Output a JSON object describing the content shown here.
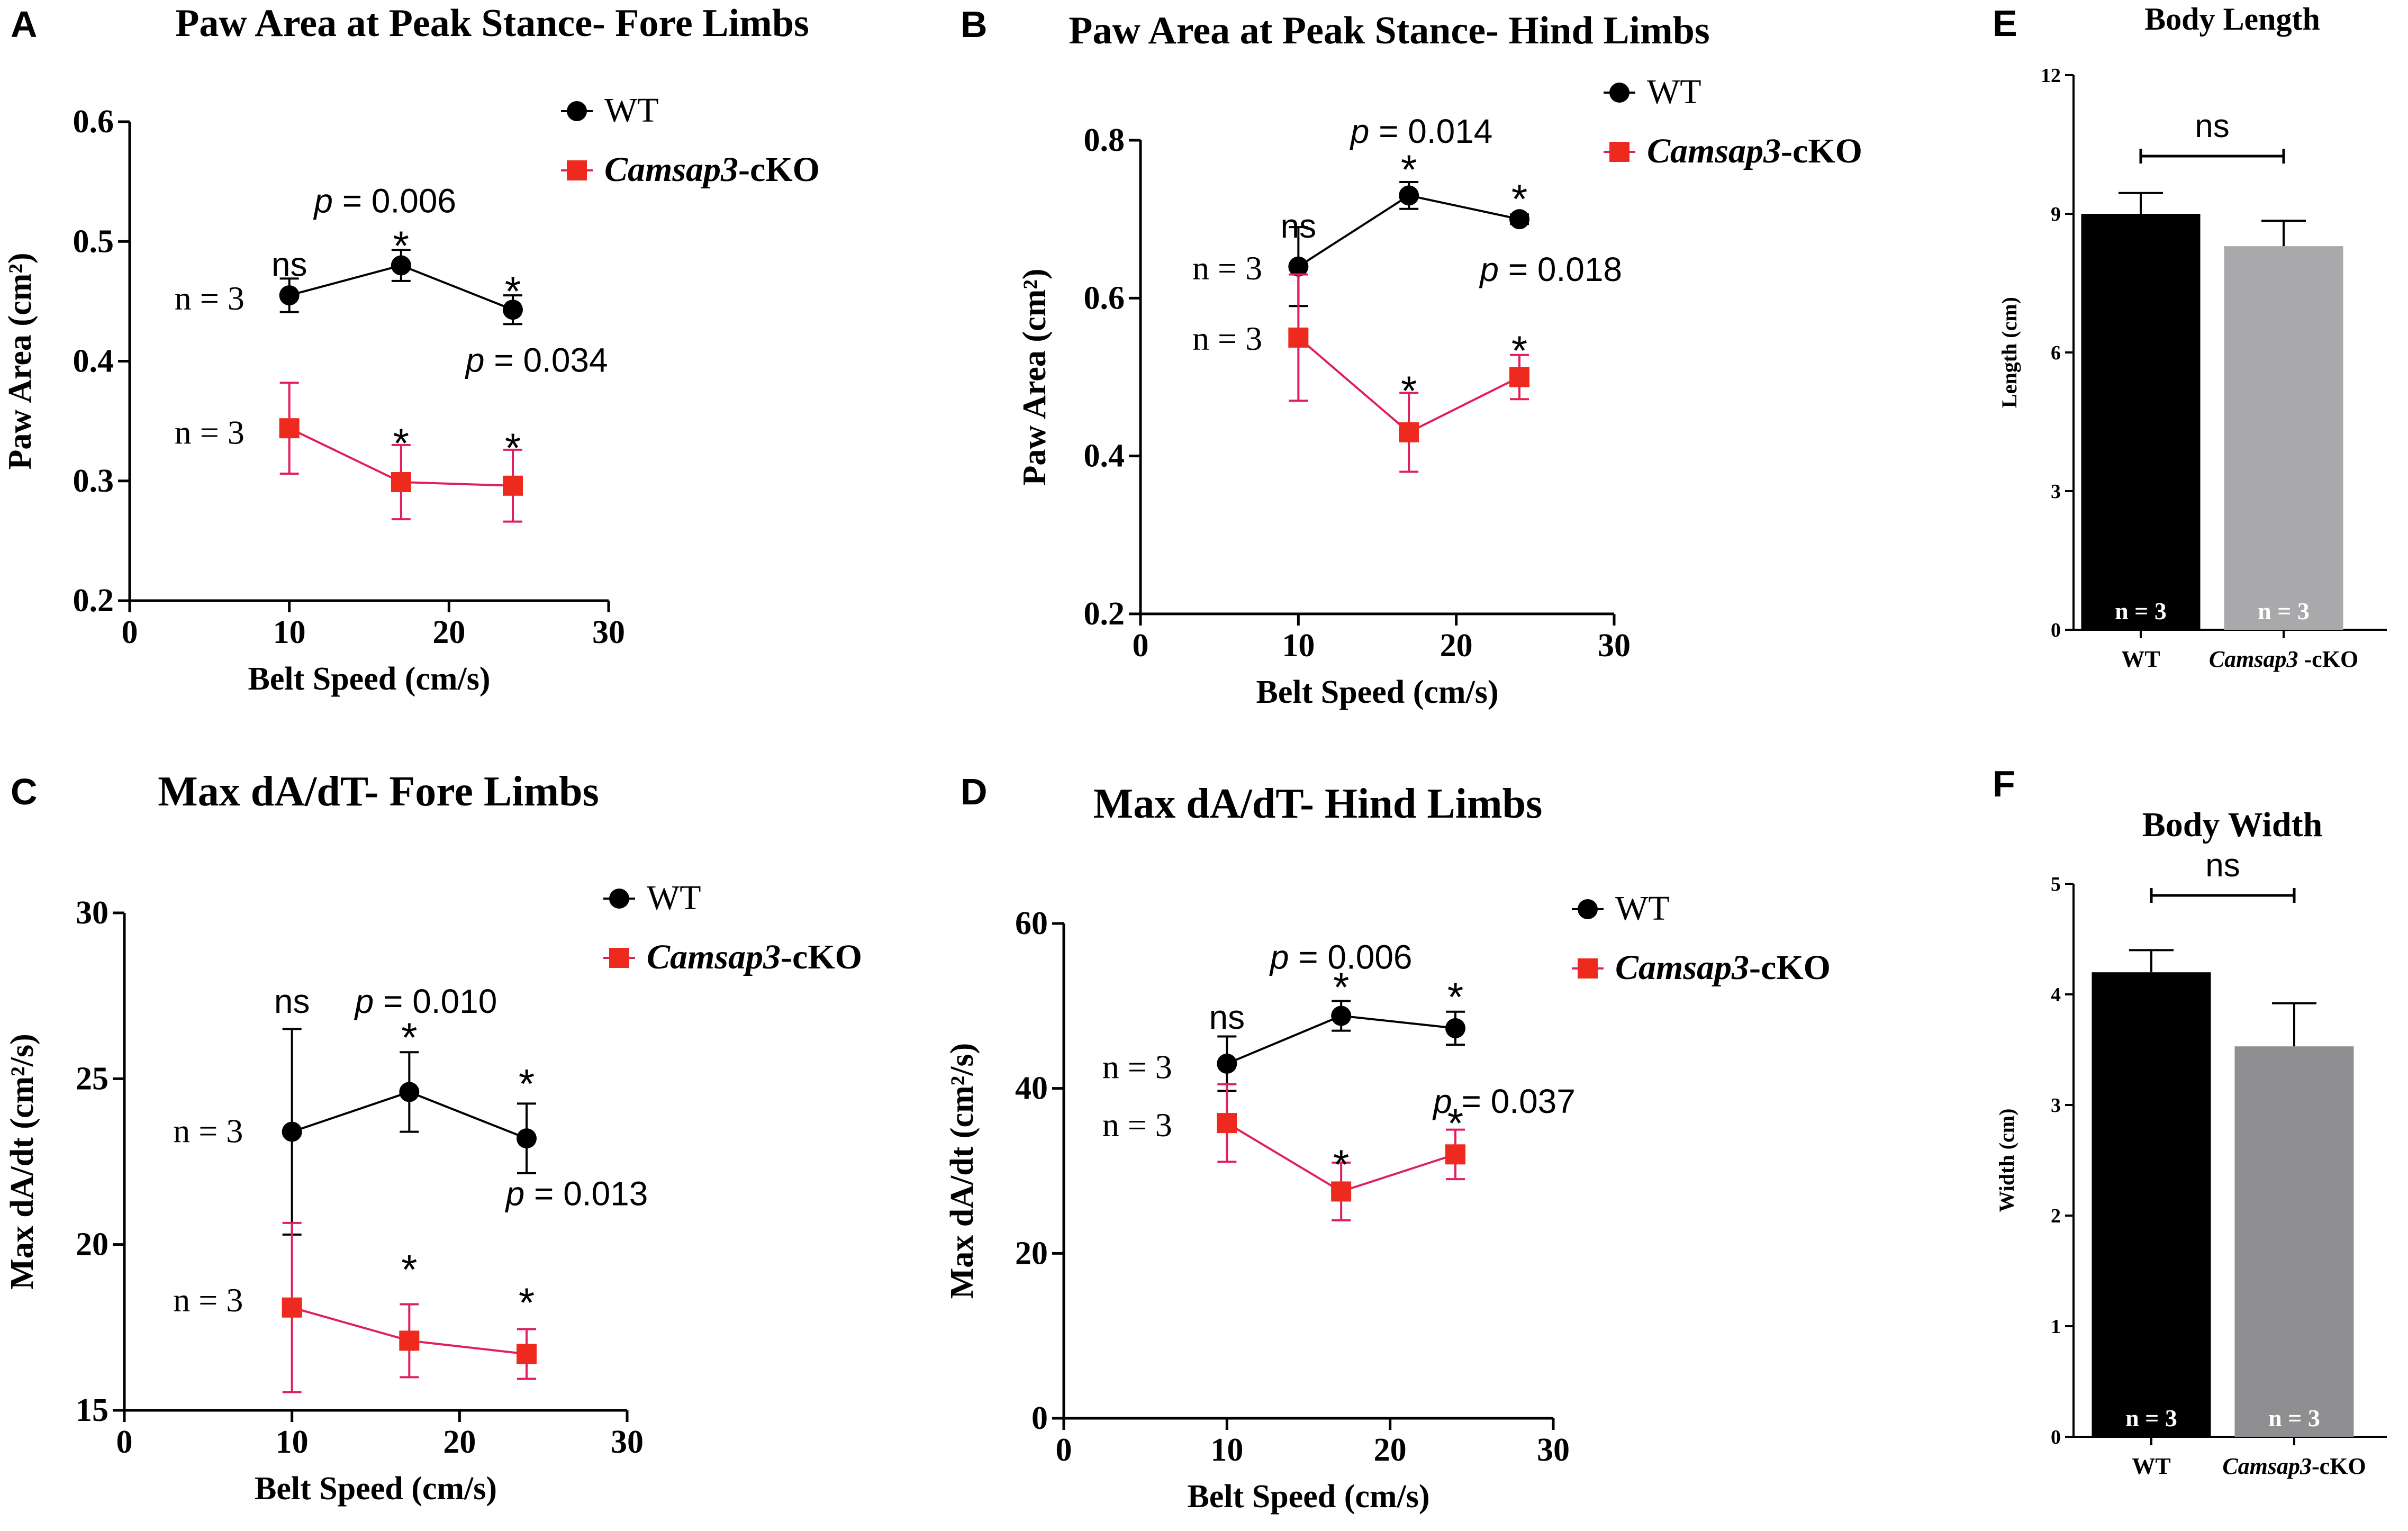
{
  "colors": {
    "wt": "#000000",
    "ko_marker": "#ee2a1f",
    "ko_line": "#e02058",
    "bar_wt": "#000000",
    "bar_ko_E": "#a9a9ab",
    "bar_ko_F": "#8f8f92"
  },
  "chart_data": [
    {
      "panel": "A",
      "type": "line",
      "title": "Paw Area at Peak Stance- Fore Limbs",
      "xlabel": "Belt Speed (cm/s)",
      "ylabel": "Paw Area (cm²)",
      "xlim": [
        0,
        30
      ],
      "ylim": [
        0.2,
        0.6
      ],
      "xticks": [
        0,
        10,
        20,
        30
      ],
      "yticks": [
        0.2,
        0.3,
        0.4,
        0.5,
        0.6
      ],
      "xtick_labels": [
        "0",
        "10",
        "20",
        "30"
      ],
      "ytick_labels": [
        "0.2",
        "0.3",
        "0.4",
        "0.5",
        "0.6"
      ],
      "legend": [
        {
          "label": "WT"
        },
        {
          "label": "Camsap3",
          "suffix": "-cKO"
        }
      ],
      "series": [
        {
          "name": "WT",
          "x": [
            10,
            17,
            24
          ],
          "y": [
            0.455,
            0.48,
            0.443
          ],
          "err": [
            0.014,
            0.013,
            0.012
          ]
        },
        {
          "name": "Camsap3-cKO",
          "x": [
            10,
            17,
            24
          ],
          "y": [
            0.344,
            0.299,
            0.296
          ],
          "err": [
            0.038,
            0.031,
            0.03
          ]
        }
      ],
      "annotations": [
        {
          "text": "ns",
          "x": 10,
          "y": 0.48,
          "style": "sans"
        },
        {
          "text": "*",
          "x": 17,
          "y": 0.498,
          "style": "sans"
        },
        {
          "text": "*",
          "x": 24,
          "y": 0.46,
          "style": "sans"
        },
        {
          "text": "*",
          "x": 17,
          "y": 0.333,
          "style": "sans"
        },
        {
          "text": "*",
          "x": 24,
          "y": 0.329,
          "style": "sans"
        },
        {
          "text": "n = 3",
          "x": 5,
          "y": 0.452,
          "style": "serif"
        },
        {
          "text": "n = 3",
          "x": 5,
          "y": 0.34,
          "style": "serif"
        },
        {
          "pitalic": "p",
          "text": " = 0.006",
          "x": 16,
          "y": 0.533,
          "style": "sans"
        },
        {
          "pitalic": "p",
          "text": " = 0.034",
          "x": 25.5,
          "y": 0.4,
          "style": "sans"
        }
      ]
    },
    {
      "panel": "B",
      "type": "line",
      "title": "Paw Area at Peak Stance- Hind Limbs",
      "xlabel": "Belt Speed (cm/s)",
      "ylabel": "Paw Area (cm²)",
      "xlim": [
        0,
        30
      ],
      "ylim": [
        0.2,
        0.8
      ],
      "xticks": [
        0,
        10,
        20,
        30
      ],
      "yticks": [
        0.2,
        0.4,
        0.6,
        0.8
      ],
      "xtick_labels": [
        "0",
        "10",
        "20",
        "30"
      ],
      "ytick_labels": [
        "0.2",
        "0.4",
        "0.6",
        "0.8"
      ],
      "legend": [
        {
          "label": "WT"
        },
        {
          "label": "Camsap3",
          "suffix": "-cKO"
        }
      ],
      "series": [
        {
          "name": "WT",
          "x": [
            10,
            17,
            24
          ],
          "y": [
            0.64,
            0.73,
            0.7
          ],
          "err": [
            0.05,
            0.017,
            0.006
          ]
        },
        {
          "name": "Camsap3-cKO",
          "x": [
            10,
            17,
            24
          ],
          "y": [
            0.55,
            0.43,
            0.5
          ],
          "err": [
            0.08,
            0.05,
            0.028
          ]
        }
      ],
      "annotations": [
        {
          "text": "ns",
          "x": 10,
          "y": 0.69,
          "style": "sans"
        },
        {
          "text": "*",
          "x": 17,
          "y": 0.765,
          "style": "sans"
        },
        {
          "text": "*",
          "x": 24,
          "y": 0.728,
          "style": "sans"
        },
        {
          "text": "*",
          "x": 17,
          "y": 0.485,
          "style": "sans"
        },
        {
          "text": "*",
          "x": 24,
          "y": 0.536,
          "style": "sans"
        },
        {
          "text": "n = 3",
          "x": 5.5,
          "y": 0.637,
          "style": "serif"
        },
        {
          "text": "n = 3",
          "x": 5.5,
          "y": 0.548,
          "style": "serif"
        },
        {
          "pitalic": "p",
          "text": " = 0.014",
          "x": 17.8,
          "y": 0.81,
          "style": "sans"
        },
        {
          "pitalic": "p",
          "text": " = 0.018",
          "x": 26,
          "y": 0.635,
          "style": "sans"
        }
      ]
    },
    {
      "panel": "C",
      "type": "line",
      "title": "Max dA/dT- Fore Limbs",
      "xlabel": "Belt Speed (cm/s)",
      "ylabel": "Max dA/dt (cm²/s)",
      "xlim": [
        0,
        30
      ],
      "ylim": [
        15,
        30
      ],
      "xticks": [
        0,
        10,
        20,
        30
      ],
      "yticks": [
        15,
        20,
        25,
        30
      ],
      "xtick_labels": [
        "0",
        "10",
        "20",
        "30"
      ],
      "ytick_labels": [
        "15",
        "20",
        "25",
        "30"
      ],
      "legend": [
        {
          "label": "WT"
        },
        {
          "label": "Camsap3",
          "suffix": "-cKO"
        }
      ],
      "series": [
        {
          "name": "WT",
          "x": [
            10,
            17,
            24
          ],
          "y": [
            23.4,
            24.6,
            23.2
          ],
          "err": [
            3.1,
            1.2,
            1.05
          ]
        },
        {
          "name": "Camsap3-cKO",
          "x": [
            10,
            17,
            24
          ],
          "y": [
            18.1,
            17.1,
            16.7
          ],
          "err": [
            2.55,
            1.1,
            0.75
          ]
        }
      ],
      "annotations": [
        {
          "text": "ns",
          "x": 10,
          "y": 27.3,
          "style": "sans"
        },
        {
          "text": "*",
          "x": 17,
          "y": 26.3,
          "style": "sans"
        },
        {
          "text": "*",
          "x": 24,
          "y": 24.9,
          "style": "sans"
        },
        {
          "text": "*",
          "x": 17,
          "y": 19.3,
          "style": "sans"
        },
        {
          "text": "*",
          "x": 24,
          "y": 18.3,
          "style": "sans"
        },
        {
          "text": "n = 3",
          "x": 5,
          "y": 23.4,
          "style": "serif"
        },
        {
          "text": "n = 3",
          "x": 5,
          "y": 18.3,
          "style": "serif"
        },
        {
          "pitalic": "p",
          "text": " = 0.010",
          "x": 18,
          "y": 27.3,
          "style": "sans"
        },
        {
          "pitalic": "p",
          "text": " = 0.013",
          "x": 27,
          "y": 21.5,
          "style": "sans"
        }
      ]
    },
    {
      "panel": "D",
      "type": "line",
      "title": "Max dA/dT- Hind Limbs",
      "xlabel": "Belt Speed (cm/s)",
      "ylabel": "Max dA/dt (cm²/s)",
      "xlim": [
        0,
        30
      ],
      "ylim": [
        0,
        60
      ],
      "xticks": [
        0,
        10,
        20,
        30
      ],
      "yticks": [
        0,
        20,
        40,
        60
      ],
      "xtick_labels": [
        "0",
        "10",
        "20",
        "30"
      ],
      "ytick_labels": [
        "0",
        "20",
        "40",
        "60"
      ],
      "legend": [
        {
          "label": "WT"
        },
        {
          "label": "Camsap3",
          "suffix": "-cKO"
        }
      ],
      "series": [
        {
          "name": "WT",
          "x": [
            10,
            17,
            24
          ],
          "y": [
            43,
            48.8,
            47.3
          ],
          "err": [
            3.3,
            1.8,
            2.0
          ]
        },
        {
          "name": "Camsap3-cKO",
          "x": [
            10,
            17,
            24
          ],
          "y": [
            35.8,
            27.5,
            32
          ],
          "err": [
            4.7,
            3.5,
            3.0
          ]
        }
      ],
      "annotations": [
        {
          "text": "ns",
          "x": 10,
          "y": 48.5,
          "style": "sans"
        },
        {
          "text": "*",
          "x": 17,
          "y": 52.5,
          "style": "sans"
        },
        {
          "text": "*",
          "x": 24,
          "y": 51.3,
          "style": "sans"
        },
        {
          "text": "*",
          "x": 17,
          "y": 31,
          "style": "sans"
        },
        {
          "text": "*",
          "x": 24,
          "y": 36,
          "style": "sans"
        },
        {
          "text": "n = 3",
          "x": 4.5,
          "y": 42.5,
          "style": "serif"
        },
        {
          "text": "n = 3",
          "x": 4.5,
          "y": 35.5,
          "style": "serif"
        },
        {
          "pitalic": "p",
          "text": " = 0.006",
          "x": 17,
          "y": 55.8,
          "style": "sans"
        },
        {
          "pitalic": "p",
          "text": " = 0.037",
          "x": 27,
          "y": 38.3,
          "style": "sans"
        }
      ]
    },
    {
      "panel": "E",
      "type": "bar",
      "title": "Body Length",
      "xlabel": "",
      "ylabel": "Length (cm)",
      "ylim": [
        0,
        12
      ],
      "yticks": [
        0,
        3,
        6,
        9,
        12
      ],
      "ytick_labels": [
        "0",
        "3",
        "6",
        "9",
        "12"
      ],
      "categories": [
        {
          "label": "WT"
        },
        {
          "label": "Camsap3",
          "suffix": " -cKO"
        }
      ],
      "values": [
        9.0,
        8.3
      ],
      "errors": [
        0.45,
        0.55
      ],
      "bar_labels": [
        "n = 3",
        "n = 3"
      ],
      "significance": "ns"
    },
    {
      "panel": "F",
      "type": "bar",
      "title": "Body Width",
      "xlabel": "",
      "ylabel": "Width (cm)",
      "ylim": [
        0,
        5
      ],
      "yticks": [
        0,
        1,
        2,
        3,
        4,
        5
      ],
      "ytick_labels": [
        "0",
        "1",
        "2",
        "3",
        "4",
        "5"
      ],
      "categories": [
        {
          "label": "WT"
        },
        {
          "label": "Camsap3",
          "suffix": "-cKO"
        }
      ],
      "values": [
        4.2,
        3.53
      ],
      "errors": [
        0.2,
        0.39
      ],
      "bar_labels": [
        "n = 3",
        "n = 3"
      ],
      "significance": "ns"
    }
  ]
}
